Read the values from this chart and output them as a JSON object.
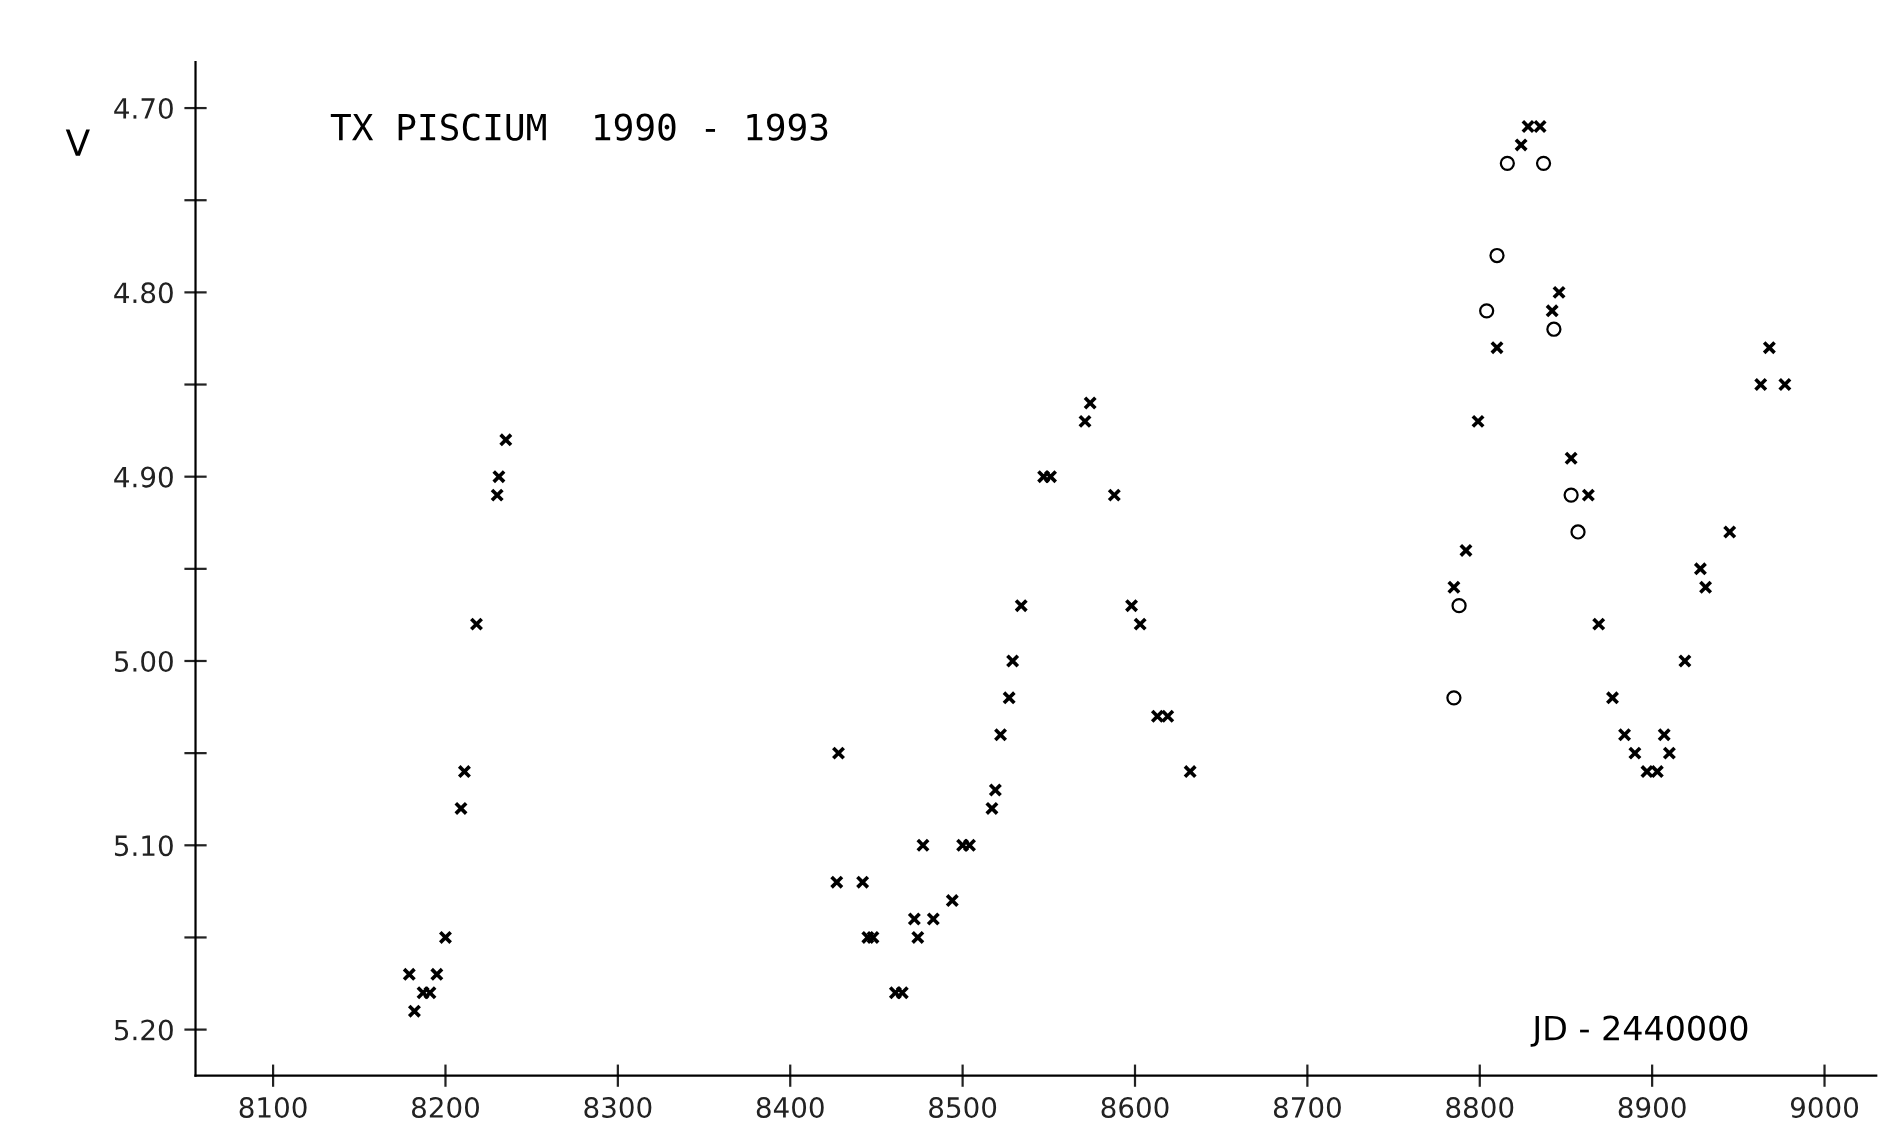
{
  "chart_data": {
    "type": "scatter",
    "title": "TX PISCIUM  1990 - 1993",
    "xlabel": "JD - 2440000",
    "ylabel": "V",
    "xlim": [
      8055,
      9030
    ],
    "ylim": [
      5.225,
      4.675
    ],
    "xticks": [
      8100,
      8200,
      8300,
      8400,
      8500,
      8600,
      8700,
      8800,
      8900,
      9000
    ],
    "yticks": [
      {
        "value": 4.7,
        "label": "4.70"
      },
      {
        "value": 4.75,
        "label": null
      },
      {
        "value": 4.8,
        "label": "4.80"
      },
      {
        "value": 4.85,
        "label": null
      },
      {
        "value": 4.9,
        "label": "4.90"
      },
      {
        "value": 4.95,
        "label": null
      },
      {
        "value": 5.0,
        "label": "5.00"
      },
      {
        "value": 5.05,
        "label": null
      },
      {
        "value": 5.1,
        "label": "5.10"
      },
      {
        "value": 5.15,
        "label": null
      },
      {
        "value": 5.2,
        "label": "5.20"
      }
    ],
    "series": [
      {
        "color": "#000000",
        "marker": "cross",
        "x": [
          8235,
          8231,
          8230,
          8218,
          8211,
          8209,
          8200,
          8179,
          8195,
          8187,
          8191,
          8182,
          8574,
          8571,
          8547,
          8551,
          8588,
          8534,
          8598,
          8603,
          8529,
          8527,
          8522,
          8613,
          8619,
          8428,
          8632,
          8519,
          8517,
          8477,
          8500,
          8504,
          8427,
          8442,
          8494,
          8472,
          8483,
          8445,
          8448,
          8474,
          8461,
          8465,
          8785,
          8792,
          8799,
          8810,
          8824,
          8828,
          8835,
          8846,
          8842,
          8968,
          8963,
          8977,
          8853,
          8863,
          8945,
          8928,
          8931,
          8869,
          8919,
          8877,
          8884,
          8907,
          8890,
          8910,
          8897,
          8903
        ],
        "values": [
          4.88,
          4.9,
          4.91,
          4.98,
          5.06,
          5.08,
          5.15,
          5.17,
          5.17,
          5.18,
          5.18,
          5.19,
          4.86,
          4.87,
          4.9,
          4.9,
          4.91,
          4.97,
          4.97,
          4.98,
          5.0,
          5.02,
          5.04,
          5.03,
          5.03,
          5.05,
          5.06,
          5.07,
          5.08,
          5.1,
          5.1,
          5.1,
          5.12,
          5.12,
          5.13,
          5.14,
          5.14,
          5.15,
          5.15,
          5.15,
          5.18,
          5.18,
          4.96,
          4.94,
          4.87,
          4.83,
          4.72,
          4.71,
          4.71,
          4.8,
          4.81,
          4.83,
          4.85,
          4.85,
          4.89,
          4.91,
          4.93,
          4.95,
          4.96,
          4.98,
          5.0,
          5.02,
          5.04,
          5.04,
          5.05,
          5.05,
          5.06,
          5.06
        ]
      },
      {
        "color": "#000000",
        "marker": "circle",
        "x": [
          8788,
          8785,
          8804,
          8810,
          8816,
          8837,
          8843,
          8853,
          8857
        ],
        "values": [
          4.97,
          5.02,
          4.81,
          4.78,
          4.73,
          4.73,
          4.82,
          4.91,
          4.93
        ]
      }
    ]
  }
}
